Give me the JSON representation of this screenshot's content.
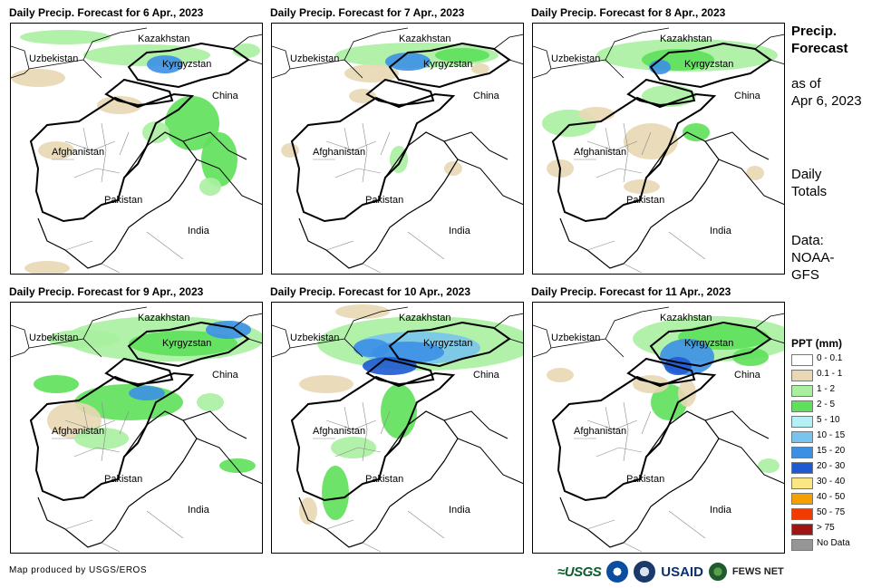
{
  "panels": [
    {
      "title": "Daily Precip. Forecast for 6 Apr., 2023"
    },
    {
      "title": "Daily Precip. Forecast for 7 Apr., 2023"
    },
    {
      "title": "Daily Precip. Forecast for 8 Apr., 2023"
    },
    {
      "title": "Daily Precip. Forecast for 9 Apr., 2023"
    },
    {
      "title": "Daily Precip. Forecast for 10 Apr., 2023"
    },
    {
      "title": "Daily Precip. Forecast for 11 Apr., 2023"
    }
  ],
  "map_labels": {
    "kazakhstan": "Kazakhstan",
    "uzbekistan": "Uzbekistan",
    "kyrgyzstan": "Kyrgyzstan",
    "china": "China",
    "afghanistan": "Afghanistan",
    "pakistan": "Pakistan",
    "india": "India"
  },
  "sidebar": {
    "title_line1": "Precip.",
    "title_line2": "Forecast",
    "asof_line1": "as of",
    "asof_line2": "Apr 6, 2023",
    "daily_line1": "Daily",
    "daily_line2": "Totals",
    "data_line1": "Data:",
    "data_line2": "NOAA-",
    "data_line3": "GFS"
  },
  "legend": {
    "title": "PPT (mm)",
    "items": [
      {
        "label": "0 - 0.1",
        "color": "#ffffff"
      },
      {
        "label": "0.1 - 1",
        "color": "#e8d8b4"
      },
      {
        "label": "1 - 2",
        "color": "#a8f0a0"
      },
      {
        "label": "2 - 5",
        "color": "#5ee05a"
      },
      {
        "label": "5 - 10",
        "color": "#b4f0f4"
      },
      {
        "label": "10 - 15",
        "color": "#78c4ec"
      },
      {
        "label": "15 - 20",
        "color": "#3c90e4"
      },
      {
        "label": "20 - 30",
        "color": "#1e5ad2"
      },
      {
        "label": "30 - 40",
        "color": "#fae682"
      },
      {
        "label": "40 - 50",
        "color": "#f5a000"
      },
      {
        "label": "50 - 75",
        "color": "#f03c00"
      },
      {
        "label": "> 75",
        "color": "#a01414"
      },
      {
        "label": "No Data",
        "color": "#969696"
      }
    ]
  },
  "footer": {
    "credit": "Map produced by USGS/EROS",
    "usgs": "≈USGS",
    "usaid": "USAID",
    "fews": "FEWS NET"
  }
}
